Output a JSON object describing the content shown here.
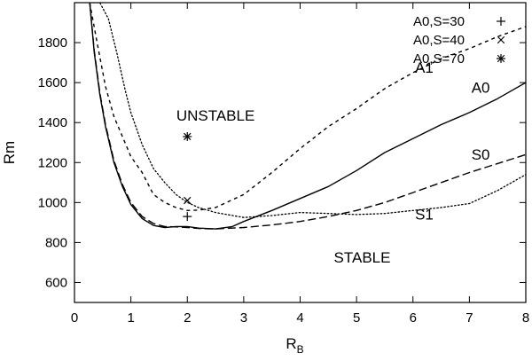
{
  "chart_data": {
    "type": "line",
    "title": "",
    "xlabel": "R",
    "xlabel_sub": "B",
    "ylabel": "Rm",
    "xlim": [
      0,
      8
    ],
    "ylim": [
      500,
      2000
    ],
    "grid": false,
    "legend_position": "top-right",
    "x_ticks": [
      0,
      1,
      2,
      3,
      4,
      5,
      6,
      7,
      8
    ],
    "y_ticks": [
      600,
      800,
      1000,
      1200,
      1400,
      1600,
      1800
    ],
    "series": [
      {
        "name": "A0",
        "style": "solid",
        "x": [
          0.27,
          0.35,
          0.45,
          0.55,
          0.7,
          0.85,
          1.0,
          1.2,
          1.4,
          1.6,
          1.8,
          2.0,
          2.2,
          2.5,
          2.8,
          3.0,
          3.5,
          4.0,
          4.5,
          5.0,
          5.5,
          6.0,
          6.5,
          7.0,
          7.5,
          8.0
        ],
        "y": [
          2000,
          1750,
          1540,
          1380,
          1200,
          1080,
          990,
          920,
          885,
          875,
          880,
          880,
          872,
          868,
          880,
          905,
          960,
          1020,
          1080,
          1160,
          1250,
          1320,
          1390,
          1450,
          1520,
          1600
        ]
      },
      {
        "name": "S0",
        "style": "long-dash",
        "x": [
          0.27,
          0.35,
          0.45,
          0.55,
          0.7,
          0.85,
          1.0,
          1.2,
          1.4,
          1.6,
          1.8,
          2.0,
          2.2,
          2.5,
          3.0,
          3.5,
          4.0,
          4.5,
          5.0,
          5.5,
          6.0,
          6.5,
          7.0,
          7.5,
          8.0
        ],
        "y": [
          2000,
          1760,
          1550,
          1390,
          1210,
          1090,
          1000,
          930,
          895,
          880,
          878,
          875,
          870,
          868,
          875,
          888,
          905,
          930,
          960,
          1000,
          1050,
          1100,
          1150,
          1195,
          1240
        ]
      },
      {
        "name": "A1",
        "style": "dash",
        "x": [
          0.27,
          0.4,
          0.55,
          0.7,
          0.85,
          1.0,
          1.2,
          1.4,
          1.6,
          1.8,
          2.0,
          2.2,
          2.5,
          3.0,
          3.5,
          4.0,
          4.5,
          5.0,
          5.5,
          6.0,
          6.5,
          7.0,
          7.5,
          8.0
        ],
        "y": [
          2000,
          1800,
          1580,
          1430,
          1330,
          1230,
          1150,
          1040,
          1000,
          975,
          960,
          962,
          975,
          1040,
          1150,
          1270,
          1380,
          1470,
          1570,
          1650,
          1720,
          1770,
          1830,
          1880
        ]
      },
      {
        "name": "S1",
        "style": "dot",
        "x": [
          0.27,
          0.45,
          0.6,
          0.75,
          0.9,
          1.0,
          1.2,
          1.4,
          1.6,
          1.8,
          2.0,
          2.2,
          2.5,
          3.0,
          3.5,
          4.0,
          4.5,
          5.0,
          5.5,
          6.0,
          6.5,
          7.0,
          7.5,
          8.0
        ],
        "y": [
          2000,
          2000,
          1920,
          1750,
          1560,
          1450,
          1290,
          1170,
          1100,
          1040,
          1000,
          975,
          950,
          925,
          935,
          950,
          945,
          940,
          945,
          960,
          975,
          995,
          1060,
          1140
        ]
      }
    ],
    "points": [
      {
        "name": "A0,S=30",
        "marker": "plus",
        "x": 2.0,
        "y": 930
      },
      {
        "name": "A0,S=40",
        "marker": "cross",
        "x": 2.0,
        "y": 1010
      },
      {
        "name": "A0,S=70",
        "marker": "star",
        "x": 2.0,
        "y": 1330
      }
    ],
    "annotations": [
      {
        "text": "UNSTABLE",
        "x": 2.5,
        "y": 1410
      },
      {
        "text": "STABLE",
        "x": 5.1,
        "y": 700
      },
      {
        "text": "A1",
        "x": 6.2,
        "y": 1650
      },
      {
        "text": "A0",
        "x": 7.2,
        "y": 1550
      },
      {
        "text": "S0",
        "x": 7.2,
        "y": 1215
      },
      {
        "text": "S1",
        "x": 6.2,
        "y": 915
      }
    ]
  }
}
